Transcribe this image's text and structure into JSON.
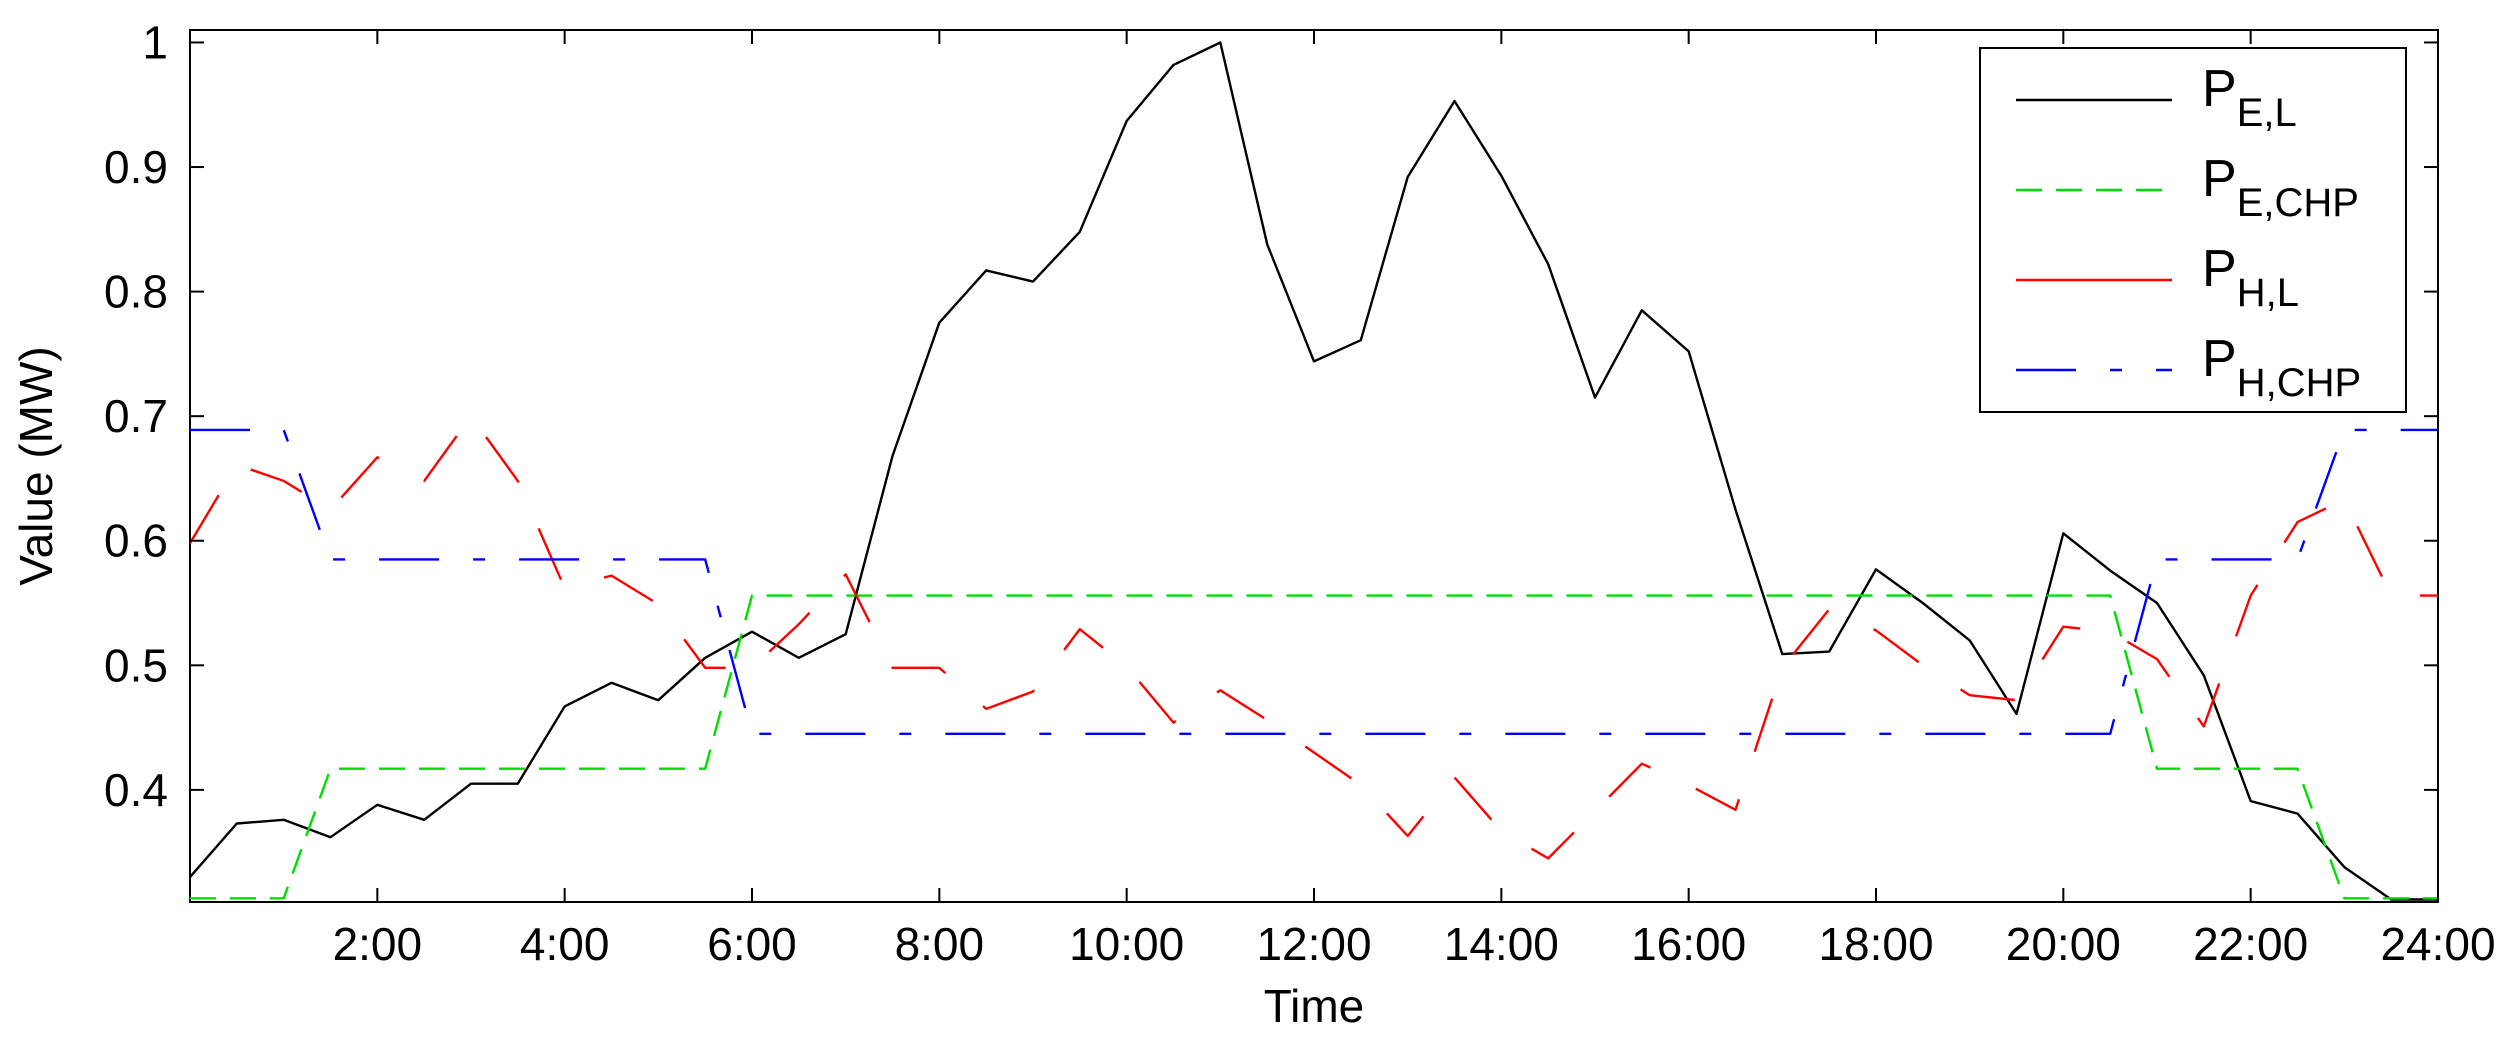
{
  "chart_data": {
    "type": "line",
    "title": "",
    "xlabel": "Time",
    "ylabel": "Value (MW)",
    "xlim": [
      0,
      24
    ],
    "ylim": [
      0.31,
      1.01
    ],
    "x_ticks": [
      2,
      4,
      6,
      8,
      10,
      12,
      14,
      16,
      18,
      20,
      22,
      24
    ],
    "x_tick_labels": [
      "2:00",
      "4:00",
      "6:00",
      "8:00",
      "10:00",
      "12:00",
      "14:00",
      "16:00",
      "18:00",
      "20:00",
      "22:00",
      "24:00"
    ],
    "y_ticks": [
      0.4,
      0.5,
      0.6,
      0.7,
      0.8,
      0.9,
      1
    ],
    "y_tick_labels": [
      "0.4",
      "0.5",
      "0.6",
      "0.7",
      "0.8",
      "0.9",
      "1"
    ],
    "grid": false,
    "legend_position": "top-right",
    "series": [
      {
        "name": "P_E,L",
        "legend_main": "P",
        "legend_sub": "E,L",
        "color": "#000000",
        "dash": "solid",
        "x": [
          0,
          0.5,
          1,
          1.5,
          2,
          2.5,
          3,
          3.5,
          4,
          4.5,
          5,
          5.5,
          6,
          6.5,
          7,
          7.5,
          8,
          8.5,
          9,
          9.5,
          10,
          10.5,
          11,
          11.5,
          12,
          12.5,
          13,
          13.5,
          14,
          14.5,
          15,
          15.5,
          16,
          16.5,
          17,
          17.5,
          18,
          18.5,
          19,
          19.5,
          20,
          20.5,
          21,
          21.5,
          22,
          22.5,
          23,
          23.5,
          24
        ],
        "y": [
          0.33,
          0.373,
          0.376,
          0.362,
          0.388,
          0.376,
          0.405,
          0.405,
          0.467,
          0.486,
          0.472,
          0.506,
          0.527,
          0.506,
          0.525,
          0.668,
          0.775,
          0.817,
          0.808,
          0.848,
          0.937,
          0.982,
          1.0,
          0.838,
          0.744,
          0.761,
          0.892,
          0.953,
          0.893,
          0.822,
          0.715,
          0.785,
          0.752,
          0.625,
          0.509,
          0.511,
          0.577,
          0.55,
          0.52,
          0.461,
          0.606,
          0.576,
          0.55,
          0.492,
          0.391,
          0.381,
          0.338,
          0.312,
          0.312
        ]
      },
      {
        "name": "P_E,CHP",
        "legend_main": "P",
        "legend_sub": "E,CHP",
        "color": "#00dd00",
        "dash": "dashed",
        "x": [
          0,
          1,
          1.5,
          5.5,
          6,
          20.5,
          21,
          22.5,
          23,
          24
        ],
        "y": [
          0.313,
          0.313,
          0.417,
          0.417,
          0.556,
          0.556,
          0.417,
          0.417,
          0.313,
          0.313
        ]
      },
      {
        "name": "P_H,L",
        "legend_main": "P",
        "legend_sub": "H,L",
        "color": "#ff0000",
        "dash": "long-gap",
        "x": [
          0,
          0.5,
          1,
          1.5,
          2,
          2.5,
          3,
          3.5,
          4,
          4.5,
          5,
          5.5,
          6,
          6.5,
          7,
          7.5,
          8,
          8.5,
          9,
          9.5,
          10,
          10.5,
          11,
          11.5,
          12,
          12.5,
          13,
          13.5,
          14,
          14.5,
          15,
          15.5,
          16,
          16.5,
          17,
          17.5,
          18,
          18.5,
          19,
          19.5,
          20,
          20.5,
          21,
          21.5,
          22,
          22.5,
          23,
          23.5,
          24
        ],
        "y": [
          0.598,
          0.661,
          0.648,
          0.625,
          0.667,
          0.648,
          0.7,
          0.648,
          0.562,
          0.572,
          0.549,
          0.498,
          0.498,
          0.533,
          0.573,
          0.498,
          0.498,
          0.465,
          0.479,
          0.529,
          0.499,
          0.454,
          0.48,
          0.456,
          0.43,
          0.404,
          0.363,
          0.41,
          0.367,
          0.345,
          0.383,
          0.421,
          0.404,
          0.384,
          0.498,
          0.545,
          0.528,
          0.5,
          0.476,
          0.472,
          0.531,
          0.527,
          0.505,
          0.451,
          0.556,
          0.615,
          0.633,
          0.556,
          0.556
        ]
      },
      {
        "name": "P_H,CHP",
        "legend_main": "P",
        "legend_sub": "H,CHP",
        "color": "#0000ff",
        "dash": "dash-dot",
        "x": [
          0,
          1,
          1.5,
          5.5,
          6,
          20.5,
          21,
          22.5,
          23,
          24
        ],
        "y": [
          0.689,
          0.689,
          0.585,
          0.585,
          0.445,
          0.445,
          0.585,
          0.585,
          0.689,
          0.689
        ]
      }
    ]
  }
}
